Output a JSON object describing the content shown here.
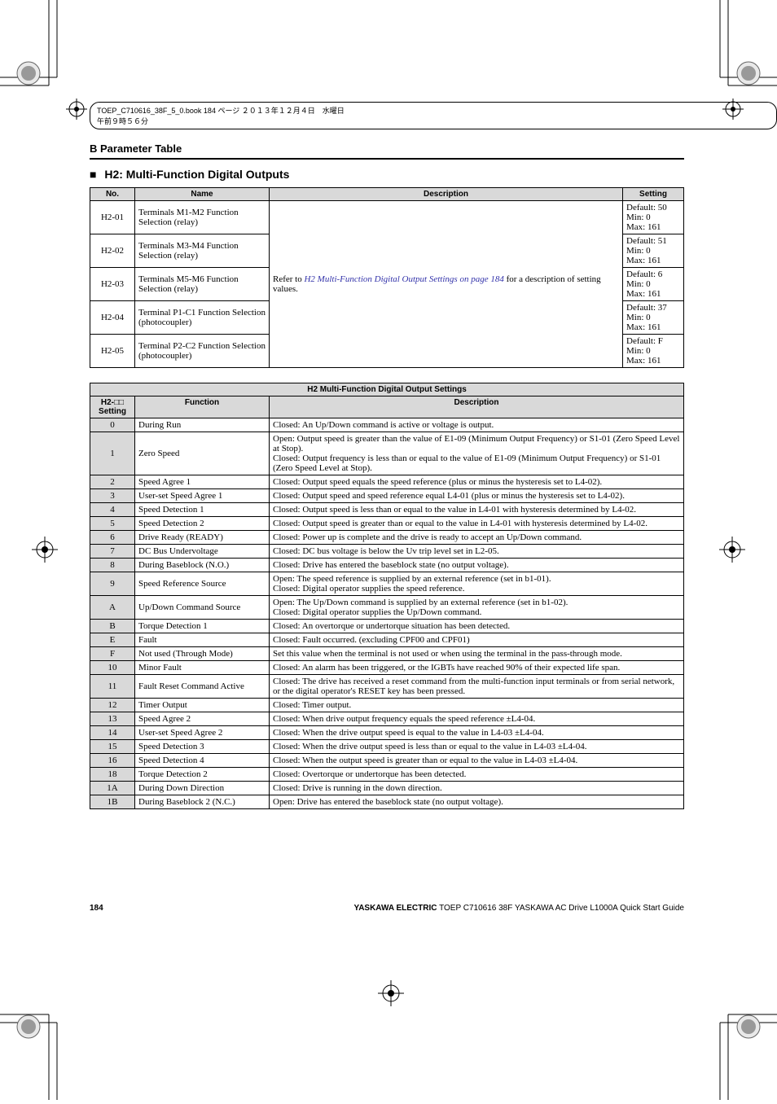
{
  "header": {
    "breadcrumb": "B  Parameter Table",
    "section_marker": "■",
    "section_title": "H2: Multi-Function Digital Outputs"
  },
  "book_tag": "TOEP_C710616_38F_5_0.book  184 ページ  ２０１３年１２月４日　水曜日　午前９時５６分",
  "table1": {
    "headers": {
      "no": "No.",
      "name": "Name",
      "description": "Description",
      "setting": "Setting"
    },
    "shared_desc_prefix": "Refer to ",
    "shared_desc_link": "H2 Multi-Function Digital Output Settings on page 184",
    "shared_desc_suffix": " for a description of setting values.",
    "rows": [
      {
        "no": "H2-01",
        "name": "Terminals M1-M2 Function Selection (relay)",
        "set": [
          "Default: 50",
          "Min: 0",
          "Max: 161"
        ]
      },
      {
        "no": "H2-02",
        "name": "Terminals M3-M4 Function Selection (relay)",
        "set": [
          "Default: 51",
          "Min: 0",
          "Max: 161"
        ]
      },
      {
        "no": "H2-03",
        "name": "Terminals M5-M6 Function Selection (relay)",
        "set": [
          "Default: 6",
          "Min: 0",
          "Max: 161"
        ]
      },
      {
        "no": "H2-04",
        "name": "Terminal P1-C1 Function Selection (photocoupler)",
        "set": [
          "Default: 37",
          "Min: 0",
          "Max: 161"
        ]
      },
      {
        "no": "H2-05",
        "name": "Terminal P2-C2 Function Selection (photocoupler)",
        "set": [
          "Default: F",
          "Min: 0",
          "Max: 161"
        ]
      }
    ]
  },
  "table2": {
    "title": "H2 Multi-Function Digital Output Settings",
    "headers": {
      "setting": "H2-□□ Setting",
      "function": "Function",
      "description": "Description"
    },
    "rows": [
      {
        "s": "0",
        "f": "During Run",
        "d": "Closed: An Up/Down command is active or voltage is output."
      },
      {
        "s": "1",
        "f": "Zero Speed",
        "d": "Open: Output speed is greater than the value of E1-09 (Minimum Output Frequency) or S1-01 (Zero Speed Level at Stop).\nClosed: Output frequency is less than or equal to the value of E1-09 (Minimum Output Frequency) or S1-01 (Zero Speed Level at Stop)."
      },
      {
        "s": "2",
        "f": "Speed Agree 1",
        "d": "Closed: Output speed equals the speed reference (plus or minus the hysteresis set to L4-02)."
      },
      {
        "s": "3",
        "f": "User-set Speed Agree 1",
        "d": "Closed: Output speed and speed reference equal L4-01 (plus or minus the hysteresis set to L4-02)."
      },
      {
        "s": "4",
        "f": "Speed Detection 1",
        "d": "Closed: Output speed is less than or equal to the value in L4-01 with hysteresis determined by L4-02."
      },
      {
        "s": "5",
        "f": "Speed Detection 2",
        "d": "Closed: Output speed is greater than or equal to the value in L4-01 with hysteresis determined by L4-02."
      },
      {
        "s": "6",
        "f": "Drive Ready (READY)",
        "d": "Closed: Power up is complete and the drive is ready to accept an Up/Down command."
      },
      {
        "s": "7",
        "f": "DC Bus Undervoltage",
        "d": "Closed: DC bus voltage is below the Uv trip level set in L2-05."
      },
      {
        "s": "8",
        "f": "During Baseblock (N.O.)",
        "d": "Closed: Drive has entered the baseblock state (no output voltage)."
      },
      {
        "s": "9",
        "f": "Speed Reference Source",
        "d": "Open: The speed reference is supplied by an external reference (set in b1-01).\nClosed: Digital operator supplies the speed reference."
      },
      {
        "s": "A",
        "f": "Up/Down Command Source",
        "d": "Open: The Up/Down command is supplied by an external reference (set in b1-02).\nClosed: Digital operator supplies the Up/Down command."
      },
      {
        "s": "B",
        "f": "Torque Detection 1",
        "d": "Closed: An overtorque or undertorque situation has been detected."
      },
      {
        "s": "E",
        "f": "Fault",
        "d": "Closed: Fault occurred. (excluding CPF00 and CPF01)"
      },
      {
        "s": "F",
        "f": "Not used (Through Mode)",
        "d": "Set this value when the terminal is not used or when using the terminal in the pass-through mode."
      },
      {
        "s": "10",
        "f": "Minor Fault",
        "d": "Closed: An alarm has been triggered, or the IGBTs have reached 90% of their expected life span."
      },
      {
        "s": "11",
        "f": "Fault Reset Command Active",
        "d": "Closed: The drive has received a reset command from the multi-function input terminals or from serial network, or the digital operator's RESET key has been pressed."
      },
      {
        "s": "12",
        "f": "Timer Output",
        "d": "Closed: Timer output."
      },
      {
        "s": "13",
        "f": "Speed Agree 2",
        "d": "Closed: When drive output frequency equals the speed reference ±L4-04."
      },
      {
        "s": "14",
        "f": "User-set Speed Agree 2",
        "d": "Closed: When the drive output speed is equal to the value in L4-03 ±L4-04."
      },
      {
        "s": "15",
        "f": "Speed Detection 3",
        "d": "Closed: When the drive output speed is less than or equal to the value in L4-03 ±L4-04."
      },
      {
        "s": "16",
        "f": "Speed Detection 4",
        "d": "Closed: When the output speed is greater than or equal to the value in L4-03 ±L4-04."
      },
      {
        "s": "18",
        "f": "Torque Detection 2",
        "d": "Closed: Overtorque or undertorque has been detected."
      },
      {
        "s": "1A",
        "f": "During Down Direction",
        "d": "Closed: Drive is running in the down direction."
      },
      {
        "s": "1B",
        "f": "During Baseblock 2 (N.C.)",
        "d": "Open: Drive has entered the baseblock state (no output voltage)."
      }
    ]
  },
  "footer": {
    "page": "184",
    "brand": "YASKAWA ELECTRIC",
    "rest": " TOEP C710616 38F YASKAWA AC Drive L1000A Quick Start Guide"
  }
}
